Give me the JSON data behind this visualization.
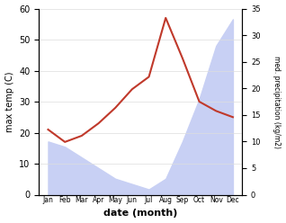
{
  "months": [
    "Jan",
    "Feb",
    "Mar",
    "Apr",
    "May",
    "Jun",
    "Jul",
    "Aug",
    "Sep",
    "Oct",
    "Nov",
    "Dec"
  ],
  "x": [
    0,
    1,
    2,
    3,
    4,
    5,
    6,
    7,
    8,
    9,
    10,
    11
  ],
  "max_temp": [
    21,
    17,
    19,
    23,
    28,
    34,
    38,
    57,
    44,
    30,
    27,
    25
  ],
  "precipitation": [
    10,
    9,
    7,
    5,
    3,
    2,
    1,
    3,
    10,
    18,
    28,
    33
  ],
  "temp_color": "#c0392b",
  "precip_fill_color": "#c8d0f4",
  "ylabel_left": "max temp (C)",
  "ylabel_right": "med. precipitation (kg/m2)",
  "xlabel": "date (month)",
  "ylim_left": [
    0,
    60
  ],
  "ylim_right": [
    0,
    35
  ],
  "yticks_left": [
    0,
    10,
    20,
    30,
    40,
    50,
    60
  ],
  "yticks_right": [
    0,
    5,
    10,
    15,
    20,
    25,
    30,
    35
  ]
}
